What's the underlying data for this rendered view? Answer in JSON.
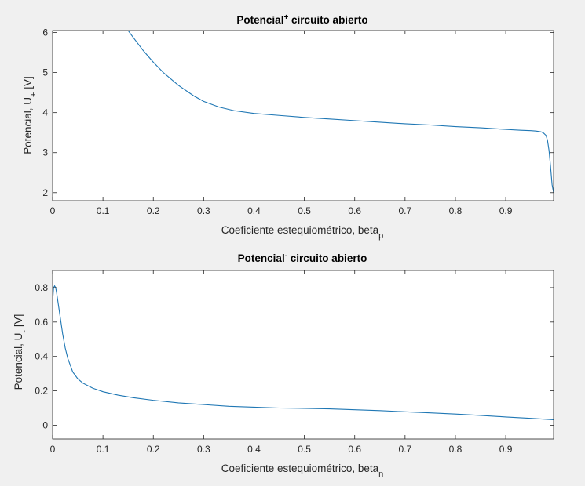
{
  "chart_data": [
    {
      "type": "line",
      "title_main": "Potencial",
      "title_sup": "+",
      "title_rest": " circuito abierto",
      "xlabel_main": "Coeficiente estequiométrico, beta",
      "xlabel_sub": "p",
      "ylabel_main": "Potencial, U",
      "ylabel_sub": "+",
      "ylabel_tail": " [V]",
      "xlim": [
        0,
        0.995
      ],
      "ylim": [
        1.8,
        6.05
      ],
      "xticks": [
        0,
        0.1,
        0.2,
        0.3,
        0.4,
        0.5,
        0.6,
        0.7,
        0.8,
        0.9
      ],
      "xtick_labels": [
        "0",
        "0.1",
        "0.2",
        "0.3",
        "0.4",
        "0.5",
        "0.6",
        "0.7",
        "0.8",
        "0.9"
      ],
      "yticks": [
        2,
        3,
        4,
        5,
        6
      ],
      "ytick_labels": [
        "2",
        "3",
        "4",
        "5",
        "6"
      ],
      "grid": false,
      "color": "#1f77b4",
      "x": [
        0.15,
        0.16,
        0.18,
        0.2,
        0.22,
        0.25,
        0.28,
        0.3,
        0.33,
        0.36,
        0.4,
        0.45,
        0.5,
        0.55,
        0.6,
        0.65,
        0.7,
        0.75,
        0.8,
        0.85,
        0.9,
        0.93,
        0.95,
        0.96,
        0.97,
        0.975,
        0.98,
        0.983,
        0.986,
        0.989,
        0.992,
        0.995
      ],
      "y": [
        6.05,
        5.88,
        5.55,
        5.26,
        5.0,
        4.68,
        4.42,
        4.28,
        4.14,
        4.05,
        3.98,
        3.93,
        3.88,
        3.84,
        3.8,
        3.76,
        3.72,
        3.69,
        3.65,
        3.62,
        3.58,
        3.56,
        3.55,
        3.54,
        3.52,
        3.49,
        3.43,
        3.3,
        3.05,
        2.65,
        2.2,
        2.0
      ]
    },
    {
      "type": "line",
      "title_main": "Potencial",
      "title_sup": "-",
      "title_rest": " circuito abierto",
      "xlabel_main": "Coeficiente estequiométrico, beta",
      "xlabel_sub": "n",
      "ylabel_main": "Potencial, U",
      "ylabel_sub": "-",
      "ylabel_tail": " [V]",
      "xlim": [
        0,
        0.995
      ],
      "ylim": [
        -0.08,
        0.9
      ],
      "xticks": [
        0,
        0.1,
        0.2,
        0.3,
        0.4,
        0.5,
        0.6,
        0.7,
        0.8,
        0.9
      ],
      "xtick_labels": [
        "0",
        "0.1",
        "0.2",
        "0.3",
        "0.4",
        "0.5",
        "0.6",
        "0.7",
        "0.8",
        "0.9"
      ],
      "yticks": [
        0,
        0.2,
        0.4,
        0.6,
        0.8
      ],
      "ytick_labels": [
        "0",
        "0.2",
        "0.4",
        "0.6",
        "0.8"
      ],
      "grid": false,
      "color": "#1f77b4",
      "x": [
        0.0,
        0.002,
        0.004,
        0.006,
        0.008,
        0.01,
        0.015,
        0.02,
        0.025,
        0.03,
        0.04,
        0.05,
        0.06,
        0.08,
        0.1,
        0.13,
        0.16,
        0.2,
        0.25,
        0.3,
        0.35,
        0.4,
        0.45,
        0.5,
        0.55,
        0.6,
        0.65,
        0.7,
        0.75,
        0.8,
        0.85,
        0.9,
        0.95,
        0.995
      ],
      "y": [
        0.72,
        0.8,
        0.81,
        0.8,
        0.77,
        0.73,
        0.63,
        0.53,
        0.45,
        0.39,
        0.31,
        0.27,
        0.245,
        0.215,
        0.195,
        0.175,
        0.16,
        0.145,
        0.13,
        0.12,
        0.11,
        0.105,
        0.1,
        0.098,
        0.095,
        0.09,
        0.085,
        0.078,
        0.072,
        0.065,
        0.057,
        0.048,
        0.04,
        0.032
      ]
    }
  ]
}
